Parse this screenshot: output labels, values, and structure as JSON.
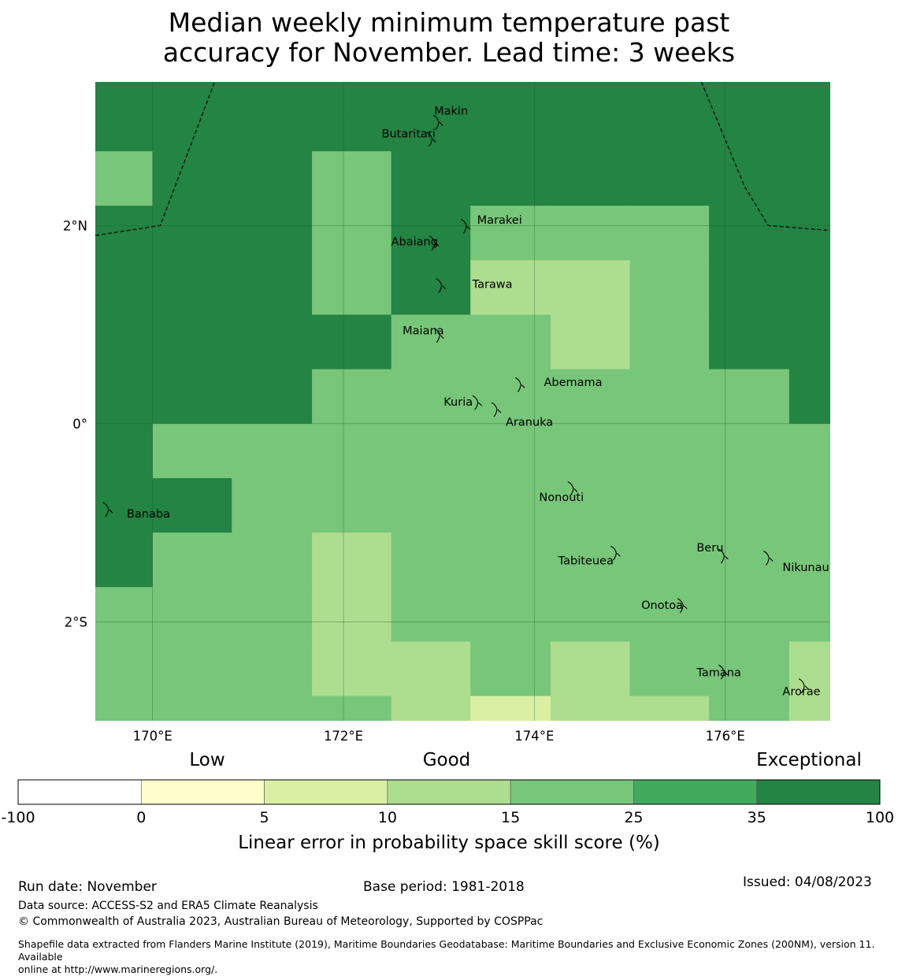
{
  "title": {
    "line1": "Median weekly minimum temperature past",
    "line2": "accuracy for November. Lead time: 3 weeks"
  },
  "map": {
    "lon_range": [
      169.4,
      177.1
    ],
    "lat_range": [
      -3.0,
      3.45
    ],
    "grid_lons": [
      170,
      172,
      174,
      176
    ],
    "grid_lats": [
      2,
      0,
      -2
    ],
    "lon_labels": [
      "170°E",
      "172°E",
      "174°E",
      "176°E"
    ],
    "lat_labels": [
      "2°N",
      "0°",
      "2°S"
    ],
    "cell_lon_edges": [
      169.4,
      170.0,
      170.83,
      171.67,
      172.5,
      173.33,
      174.17,
      175.0,
      175.83,
      176.67,
      177.1
    ],
    "cell_lat_edges": [
      3.45,
      3.08,
      2.75,
      2.2,
      1.65,
      1.1,
      0.55,
      0.0,
      -0.55,
      -1.1,
      -1.65,
      -2.2,
      -2.75,
      -3.0
    ],
    "cells": [
      [
        35,
        35,
        50,
        50,
        35,
        35,
        35,
        35,
        35,
        35
      ],
      [
        35,
        50,
        35,
        35,
        35,
        35,
        50,
        35,
        35,
        35
      ],
      [
        20,
        35,
        35,
        20,
        35,
        35,
        35,
        35,
        35,
        35
      ],
      [
        35,
        35,
        35,
        20,
        35,
        20,
        20,
        20,
        35,
        35
      ],
      [
        35,
        35,
        35,
        20,
        35,
        12,
        12,
        20,
        35,
        35
      ],
      [
        35,
        35,
        35,
        35,
        20,
        20,
        12,
        20,
        35,
        35
      ],
      [
        35,
        35,
        35,
        20,
        20,
        20,
        20,
        20,
        20,
        35
      ],
      [
        35,
        20,
        20,
        20,
        20,
        20,
        20,
        20,
        20,
        20
      ],
      [
        35,
        35,
        20,
        20,
        20,
        20,
        20,
        20,
        20,
        20
      ],
      [
        35,
        20,
        20,
        12,
        20,
        20,
        20,
        20,
        20,
        20
      ],
      [
        20,
        20,
        20,
        12,
        20,
        20,
        20,
        20,
        20,
        20
      ],
      [
        20,
        20,
        20,
        12,
        12,
        20,
        12,
        20,
        20,
        12
      ],
      [
        20,
        20,
        20,
        20,
        12,
        7,
        12,
        12,
        20,
        12
      ]
    ],
    "eez_lines": [
      [
        [
          169.4,
          1.9
        ],
        [
          170.08,
          2.0
        ],
        [
          170.65,
          3.45
        ]
      ],
      [
        [
          175.75,
          3.45
        ],
        [
          176.2,
          2.4
        ],
        [
          176.45,
          2.0
        ],
        [
          177.1,
          1.95
        ]
      ]
    ],
    "islands": [
      {
        "name": "Makin",
        "lon": 172.99,
        "lat": 3.05,
        "label_lon": 172.95,
        "label_lat": 3.12
      },
      {
        "name": "Butaritari",
        "lon": 172.92,
        "lat": 2.88,
        "label_lon": 172.4,
        "label_lat": 2.89
      },
      {
        "name": "Marakei",
        "lon": 173.28,
        "lat": 2.0,
        "label_lon": 173.4,
        "label_lat": 2.02
      },
      {
        "name": "Abaiang",
        "lon": 172.95,
        "lat": 1.83,
        "label_lon": 172.5,
        "label_lat": 1.8
      },
      {
        "name": "Tarawa",
        "lon": 173.02,
        "lat": 1.4,
        "label_lon": 173.35,
        "label_lat": 1.37
      },
      {
        "name": "Maiana",
        "lon": 173.0,
        "lat": 0.9,
        "label_lon": 172.62,
        "label_lat": 0.9
      },
      {
        "name": "Abemama",
        "lon": 173.85,
        "lat": 0.4,
        "label_lon": 174.1,
        "label_lat": 0.38
      },
      {
        "name": "Kuria",
        "lon": 173.4,
        "lat": 0.22,
        "label_lon": 173.05,
        "label_lat": 0.18
      },
      {
        "name": "Aranuka",
        "lon": 173.6,
        "lat": 0.15,
        "label_lon": 173.7,
        "label_lat": -0.02
      },
      {
        "name": "Nonouti",
        "lon": 174.4,
        "lat": -0.65,
        "label_lon": 174.05,
        "label_lat": -0.78
      },
      {
        "name": "Banaba",
        "lon": 169.53,
        "lat": -0.86,
        "label_lon": 169.73,
        "label_lat": -0.95
      },
      {
        "name": "Beru",
        "lon": 175.98,
        "lat": -1.33,
        "label_lon": 175.7,
        "label_lat": -1.29
      },
      {
        "name": "Tabiteuea",
        "lon": 174.85,
        "lat": -1.3,
        "label_lon": 174.25,
        "label_lat": -1.42
      },
      {
        "name": "Nikunau",
        "lon": 176.45,
        "lat": -1.35,
        "label_lon": 176.6,
        "label_lat": -1.49
      },
      {
        "name": "Onotoa",
        "lon": 175.55,
        "lat": -1.83,
        "label_lon": 175.12,
        "label_lat": -1.87
      },
      {
        "name": "Tamana",
        "lon": 175.98,
        "lat": -2.5,
        "label_lon": 175.7,
        "label_lat": -2.55
      },
      {
        "name": "Arorae",
        "lon": 176.82,
        "lat": -2.64,
        "label_lon": 176.6,
        "label_lat": -2.74
      }
    ]
  },
  "legend": {
    "category_labels": [
      "Low",
      "Good",
      "Exceptional"
    ],
    "bounds": [
      -100,
      0,
      5,
      10,
      15,
      25,
      35,
      100
    ],
    "tick_labels": [
      "-100",
      "0",
      "5",
      "10",
      "15",
      "25",
      "35",
      "100"
    ],
    "colors": [
      "#ffffff",
      "#ffffcc",
      "#d9f0a3",
      "#addd8e",
      "#78c679",
      "#41ab5d",
      "#238443"
    ],
    "title": "Linear error in probability space skill score (%)"
  },
  "footer": {
    "run_date": "Run date: November",
    "base_period": "Base period: 1981-2018",
    "issued": "Issued: 04/08/2023",
    "data_source": "Data source: ACCESS-S2 and ERA5 Climate Reanalysis",
    "copyright": "© Commonwealth of Australia 2023, Australian Bureau of Meteorology, Supported by COSPPac",
    "shapefile_line1": "Shapefile data extracted from Flanders Marine Institute (2019), Maritime Boundaries Geodatabase: Maritime Boundaries and Exclusive Economic Zones (200NM), version 11. Available",
    "shapefile_line2": "online at http://www.marineregions.org/."
  }
}
